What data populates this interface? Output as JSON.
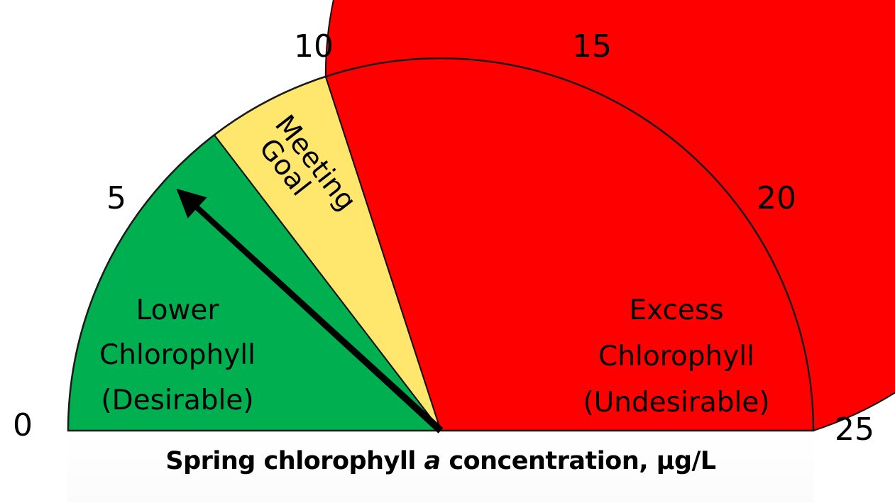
{
  "chart_data": {
    "type": "gauge",
    "title": "",
    "xlabel": {
      "prefix": "Spring chlorophyll ",
      "italic": "a",
      "suffix": " concentration, μg/L"
    },
    "range": [
      0,
      25
    ],
    "ticks": [
      "0",
      "5",
      "10",
      "15",
      "20",
      "25"
    ],
    "tick_values": [
      0,
      5,
      10,
      15,
      20,
      25
    ],
    "zones": [
      {
        "name": "lower",
        "from": 0,
        "to": 7.3,
        "color": "#00B050",
        "label": [
          "Lower",
          "Chlorophyll",
          "(Desirable)"
        ]
      },
      {
        "name": "meeting-goal",
        "from": 7.3,
        "to": 10,
        "color": "#FFE66D",
        "label": [
          "Meeting",
          "Goal"
        ]
      },
      {
        "name": "excess",
        "from": 10,
        "to": 25,
        "color": "#FF0000",
        "label": [
          "Excess",
          "Chlorophyll",
          "(Undesirable)"
        ]
      }
    ],
    "needle": {
      "value": 5.9,
      "color": "#000000"
    }
  }
}
